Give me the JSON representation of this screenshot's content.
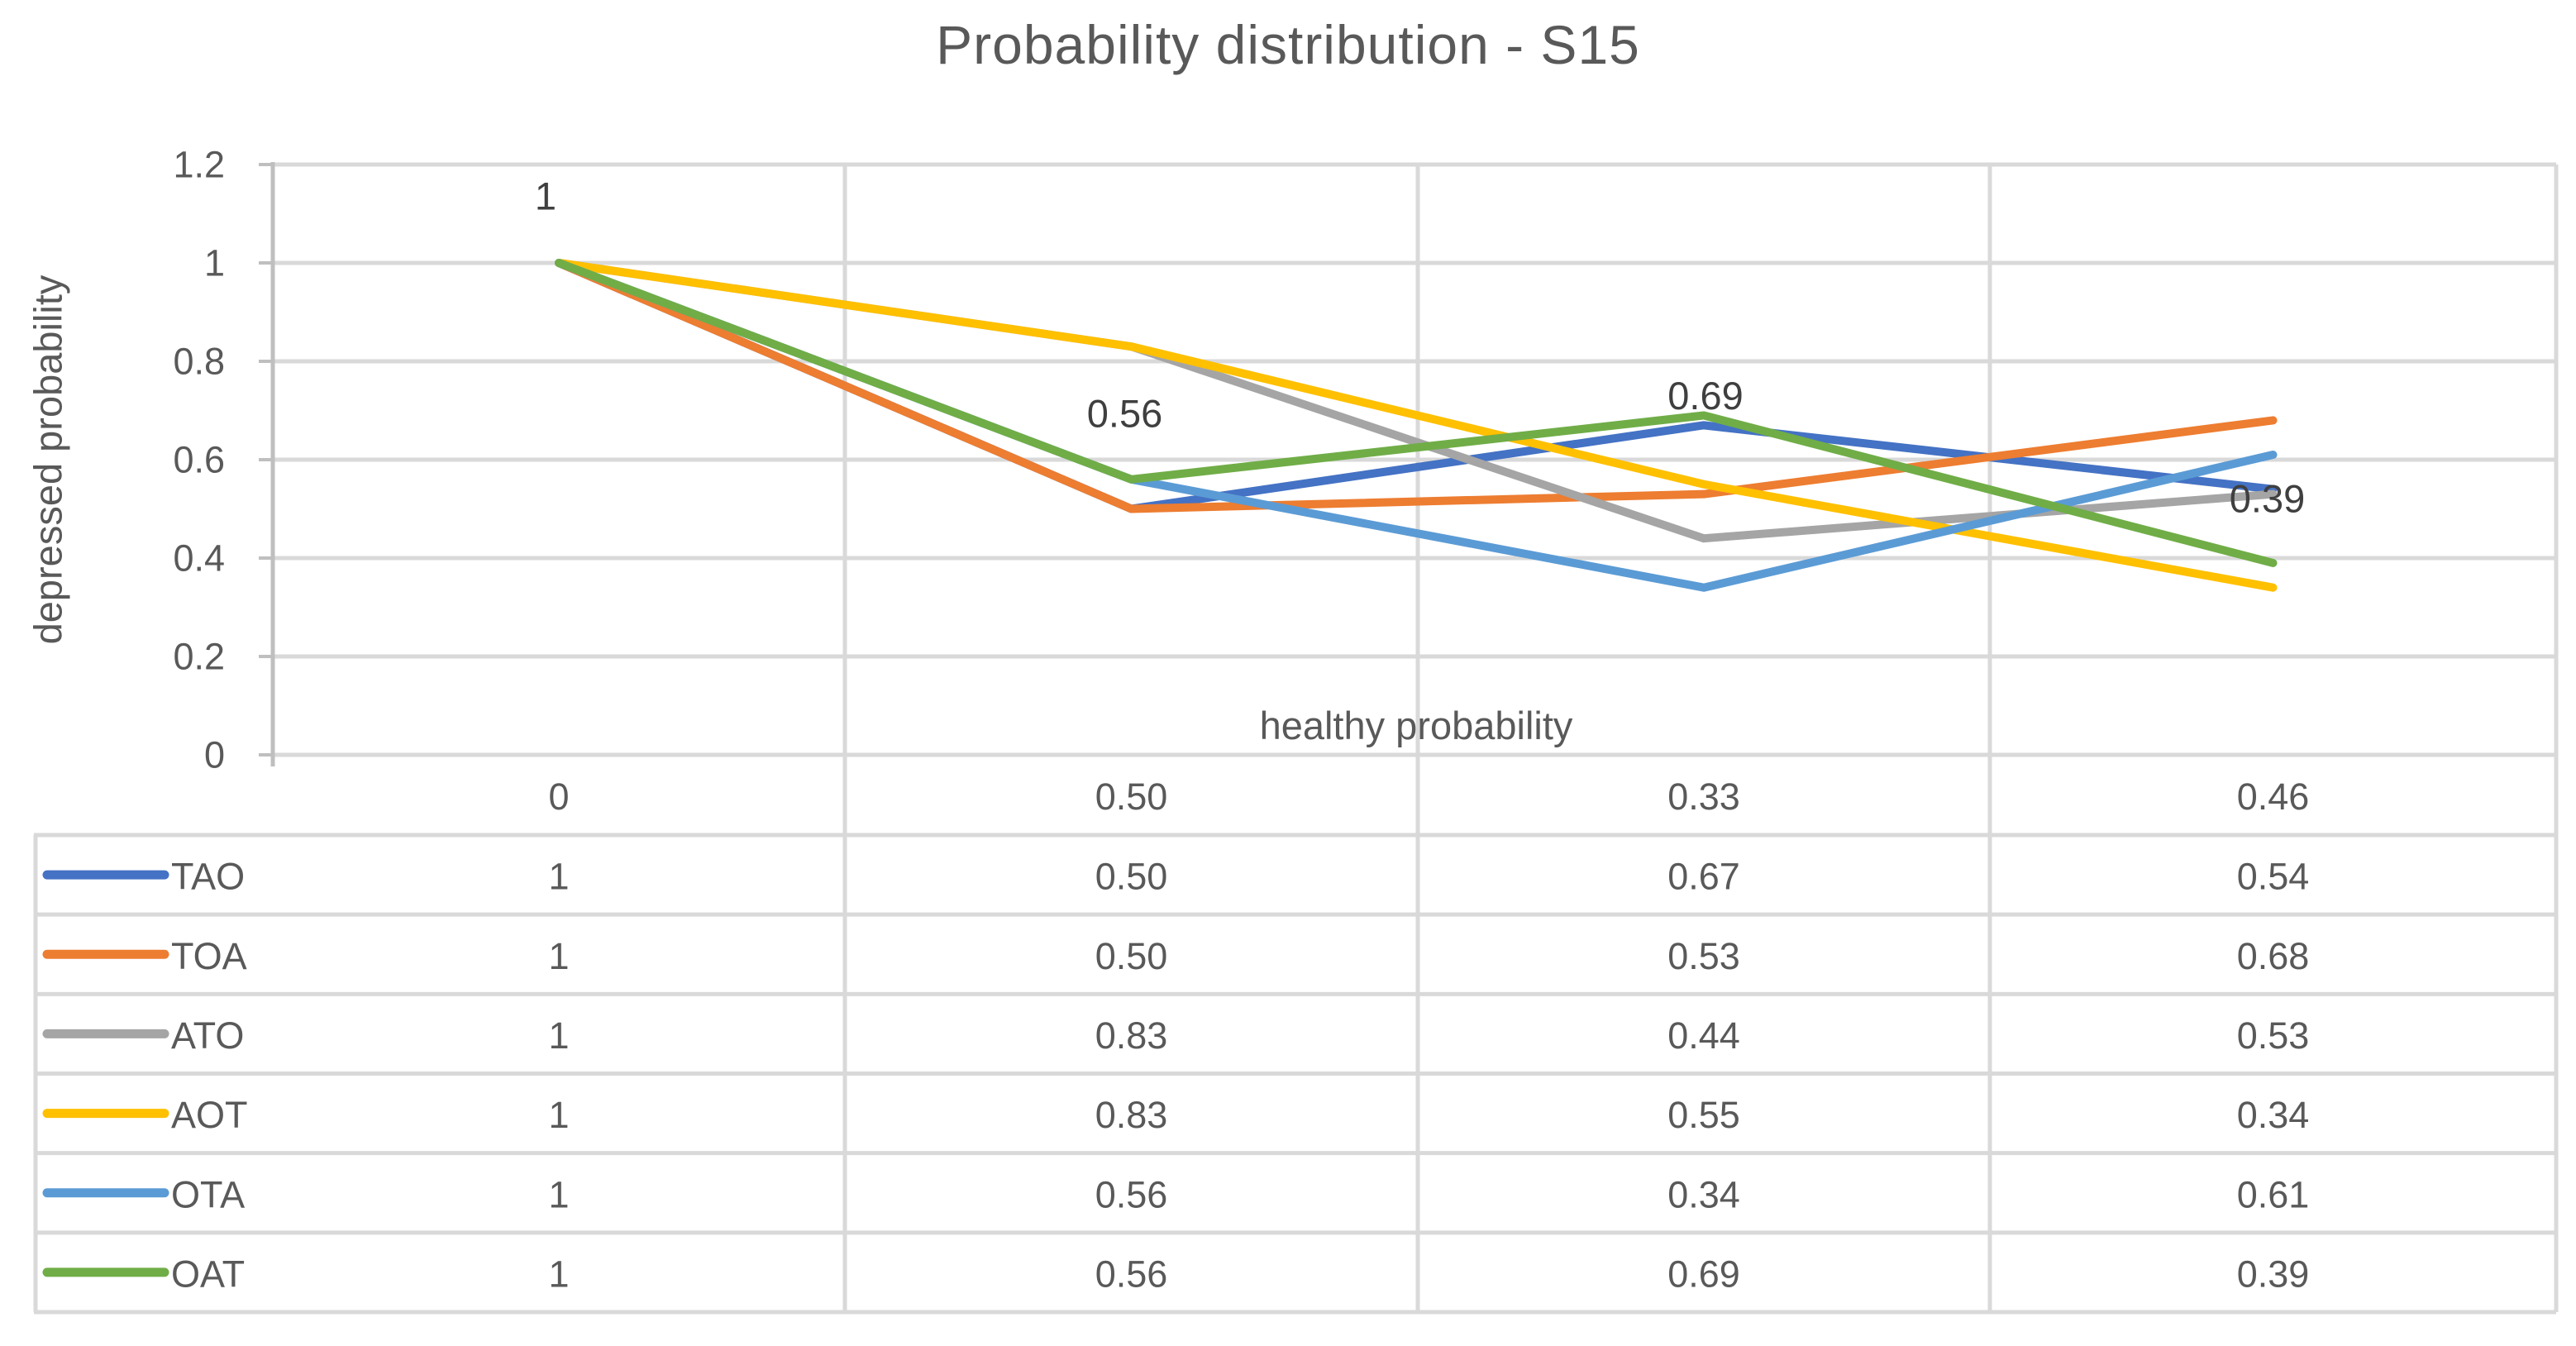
{
  "title": "Probability distribution - S15",
  "chart_data": {
    "type": "line",
    "title": "Probability distribution - S15",
    "xlabel": "healthy probability",
    "ylabel": "depressed probability",
    "ylim": [
      0,
      1.2
    ],
    "y_tick_labels": [
      "1.2",
      "1",
      "0.8",
      "0.6",
      "0.4",
      "0.2",
      "0"
    ],
    "y_tick_values": [
      1.2,
      1,
      0.8,
      0.6,
      0.4,
      0.2,
      0
    ],
    "grid": true,
    "legend_position": "data-table-below-left-keys",
    "categories": [
      "0",
      "0.50",
      "0.33",
      "0.46"
    ],
    "series": [
      {
        "name": "TAO",
        "color": "#4472C4",
        "values": [
          1,
          0.5,
          0.67,
          0.54
        ],
        "display_values": [
          "1",
          "0.50",
          "0.67",
          "0.54"
        ]
      },
      {
        "name": "TOA",
        "color": "#ED7D31",
        "values": [
          1,
          0.5,
          0.53,
          0.68
        ],
        "display_values": [
          "1",
          "0.50",
          "0.53",
          "0.68"
        ]
      },
      {
        "name": "ATO",
        "color": "#A5A5A5",
        "values": [
          1,
          0.83,
          0.44,
          0.53
        ],
        "display_values": [
          "1",
          "0.83",
          "0.44",
          "0.53"
        ]
      },
      {
        "name": "AOT",
        "color": "#FFC000",
        "values": [
          1,
          0.83,
          0.55,
          0.34
        ],
        "display_values": [
          "1",
          "0.83",
          "0.55",
          "0.34"
        ]
      },
      {
        "name": "OTA",
        "color": "#5B9BD5",
        "values": [
          1,
          0.56,
          0.34,
          0.61
        ],
        "display_values": [
          "1",
          "0.56",
          "0.34",
          "0.61"
        ]
      },
      {
        "name": "OAT",
        "color": "#70AD47",
        "values": [
          1,
          0.56,
          0.69,
          0.39
        ],
        "display_values": [
          "1",
          "0.56",
          "0.69",
          "0.39"
        ],
        "data_labels": [
          "1",
          "0.56",
          "0.69",
          "0.39"
        ]
      }
    ]
  },
  "colors": {
    "text": "#595959",
    "data_label_text": "#3F3F3F",
    "gridline": "#D9D9D9",
    "axis_line": "#BFBFBF",
    "table_border": "#D9D9D9"
  }
}
